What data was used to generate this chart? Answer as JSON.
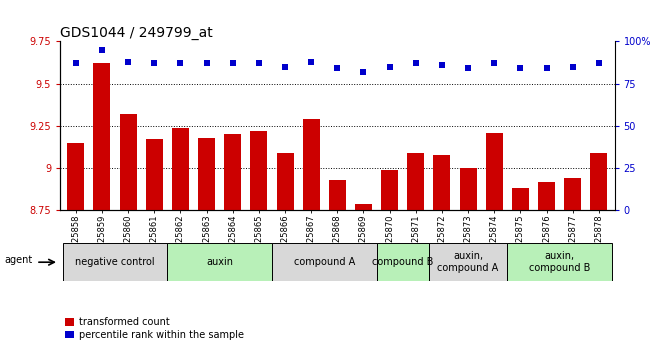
{
  "title": "GDS1044 / 249799_at",
  "samples": [
    "GSM25858",
    "GSM25859",
    "GSM25860",
    "GSM25861",
    "GSM25862",
    "GSM25863",
    "GSM25864",
    "GSM25865",
    "GSM25866",
    "GSM25867",
    "GSM25868",
    "GSM25869",
    "GSM25870",
    "GSM25871",
    "GSM25872",
    "GSM25873",
    "GSM25874",
    "GSM25875",
    "GSM25876",
    "GSM25877",
    "GSM25878"
  ],
  "bar_values": [
    9.15,
    9.62,
    9.32,
    9.17,
    9.24,
    9.18,
    9.2,
    9.22,
    9.09,
    9.29,
    8.93,
    8.79,
    8.99,
    9.09,
    9.08,
    9.0,
    9.21,
    8.88,
    8.92,
    8.94,
    9.09
  ],
  "percentile_values": [
    87,
    95,
    88,
    87,
    87,
    87,
    87,
    87,
    85,
    88,
    84,
    82,
    85,
    87,
    86,
    84,
    87,
    84,
    84,
    85,
    87
  ],
  "ylim_left": [
    8.75,
    9.75
  ],
  "ylim_right": [
    0,
    100
  ],
  "yticks_left": [
    8.75,
    9.0,
    9.25,
    9.5,
    9.75
  ],
  "ytick_labels_left": [
    "8.75",
    "9",
    "9.25",
    "9.5",
    "9.75"
  ],
  "yticks_right": [
    0,
    25,
    50,
    75,
    100
  ],
  "ytick_labels_right": [
    "0",
    "25",
    "50",
    "75",
    "100%"
  ],
  "bar_color": "#cc0000",
  "dot_color": "#0000cc",
  "bg_color": "#ffffff",
  "groups": [
    {
      "label": "negative control",
      "start": 0,
      "end": 4,
      "color": "#d8d8d8"
    },
    {
      "label": "auxin",
      "start": 4,
      "end": 8,
      "color": "#b8f0b8"
    },
    {
      "label": "compound A",
      "start": 8,
      "end": 12,
      "color": "#d8d8d8"
    },
    {
      "label": "compound B",
      "start": 12,
      "end": 14,
      "color": "#b8f0b8"
    },
    {
      "label": "auxin,\ncompound A",
      "start": 14,
      "end": 17,
      "color": "#d8d8d8"
    },
    {
      "label": "auxin,\ncompound B",
      "start": 17,
      "end": 21,
      "color": "#b8f0b8"
    }
  ],
  "legend_labels": [
    "transformed count",
    "percentile rank within the sample"
  ],
  "agent_label": "agent",
  "title_fontsize": 10,
  "tick_fontsize": 7,
  "group_fontsize": 7,
  "legend_fontsize": 7
}
